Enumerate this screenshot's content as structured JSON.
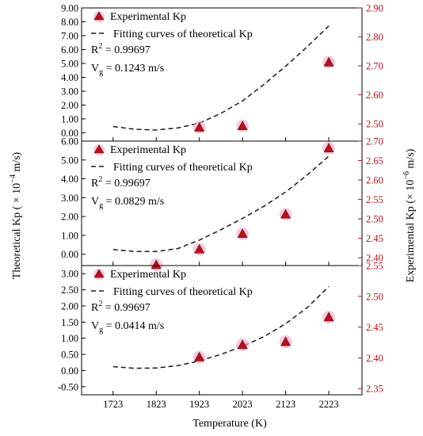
{
  "chart_data": {
    "type": "scatter",
    "xlabel": "Temperature (K)",
    "ylabel_left": "Theoretical Kp ( × 10",
    "ylabel_left_exp": "−4",
    "ylabel_left_unit": " m/s)",
    "ylabel_right": "Experimental Kp (× 10",
    "ylabel_right_exp": "−6",
    "ylabel_right_unit": " m/s)",
    "x_ticks": [
      1723,
      1823,
      1923,
      2023,
      2123,
      2223
    ],
    "xlim": [
      1650,
      2300
    ],
    "colors": {
      "experimental": "#b5121b",
      "marker_glow": "#f2a7c9",
      "fit": "#1a1a1a",
      "right_axis": "#b5121b"
    },
    "legend": {
      "position": "top-left",
      "experimental": "Experimental Kp",
      "fit": "Fitting curves of theoretical Kp"
    },
    "panels": [
      {
        "left_ticks": [
          "0.00",
          "1.00",
          "2.00",
          "3.00",
          "4.00",
          "5.00",
          "6.00",
          "7.00",
          "8.00",
          "9.00"
        ],
        "left_ylim": [
          -0.6,
          9.0
        ],
        "right_ticks": [
          "2.50",
          "2.60",
          "2.70",
          "2.80",
          "2.90"
        ],
        "right_ylim": [
          2.44,
          2.9
        ],
        "r2_label": "R",
        "r2_sup": "2",
        "r2_value": " = 0.99697",
        "vg_label": "V",
        "vg_sub": "g",
        "vg_value": " = 0.1243 m/s",
        "fit_x": [
          1723,
          1773,
          1823,
          1873,
          1923,
          1973,
          2023,
          2073,
          2123,
          2173,
          2223
        ],
        "fit_y": [
          0.45,
          0.25,
          0.2,
          0.35,
          0.7,
          1.4,
          2.3,
          3.5,
          4.8,
          6.2,
          7.7
        ],
        "exp_x": [
          1923,
          2023,
          2223
        ],
        "exp_y": [
          2.485,
          2.49,
          2.71
        ]
      },
      {
        "left_ticks": [
          "0.00",
          "1.00",
          "2.00",
          "3.00",
          "4.00",
          "5.00",
          "6.00"
        ],
        "left_ylim": [
          -0.6,
          6.0
        ],
        "right_ticks": [
          "2.40",
          "2.45",
          "2.50",
          "2.55",
          "2.60",
          "2.65",
          "2.70"
        ],
        "right_ylim": [
          2.38,
          2.7
        ],
        "r2_label": "R",
        "r2_sup": "2",
        "r2_value": " = 0.99697",
        "vg_label": "V",
        "vg_sub": "g",
        "vg_value": " = 0.0829 m/s",
        "fit_x": [
          1723,
          1773,
          1823,
          1873,
          1923,
          1973,
          2023,
          2073,
          2123,
          2173,
          2223
        ],
        "fit_y": [
          0.25,
          0.15,
          0.15,
          0.3,
          0.75,
          1.3,
          1.9,
          2.55,
          3.3,
          4.2,
          5.2
        ],
        "exp_x": [
          1823,
          1923,
          2023,
          2123,
          2223
        ],
        "exp_y": [
          2.38,
          2.42,
          2.46,
          2.51,
          2.68
        ]
      },
      {
        "left_ticks": [
          "-0.50",
          "0.00",
          "0.50",
          "1.00",
          "1.50",
          "2.00",
          "2.50",
          "3.00"
        ],
        "left_ylim": [
          -0.75,
          3.25
        ],
        "right_ticks": [
          "2.35",
          "2.40",
          "2.45",
          "2.50",
          "2.55"
        ],
        "right_ylim": [
          2.34,
          2.55
        ],
        "r2_label": "R",
        "r2_sup": "2",
        "r2_value": " = 0.99697",
        "vg_label": "V",
        "vg_sub": "g",
        "vg_value": " = 0.0414 m/s",
        "fit_x": [
          1723,
          1773,
          1823,
          1873,
          1923,
          1973,
          2023,
          2073,
          2123,
          2173,
          2223
        ],
        "fit_y": [
          0.12,
          0.07,
          0.08,
          0.15,
          0.3,
          0.5,
          0.75,
          1.05,
          1.45,
          1.95,
          2.6
        ],
        "exp_x": [
          1923,
          2023,
          2123,
          2223
        ],
        "exp_y": [
          2.4,
          2.42,
          2.425,
          2.465
        ]
      }
    ]
  }
}
